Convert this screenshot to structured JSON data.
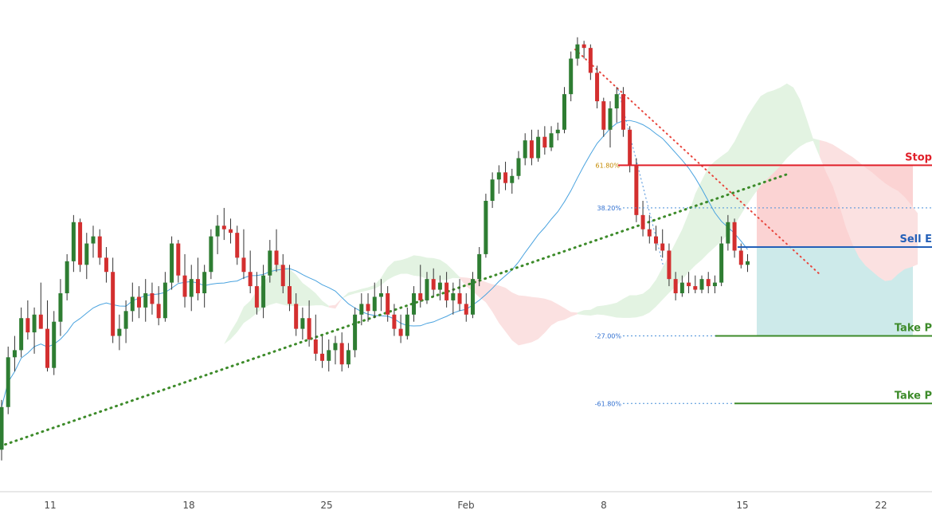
{
  "chart_data": {
    "type": "candlestick",
    "title": "",
    "xlabel": "",
    "ylabel": "",
    "x_ticks": [
      "11",
      "18",
      "25",
      "Feb",
      "8",
      "15",
      "22"
    ],
    "price_range": [
      0,
      100
    ],
    "grid": false,
    "legend": "none",
    "candles": [
      {
        "o": 8,
        "h": 22,
        "l": 5,
        "c": 20
      },
      {
        "o": 20,
        "h": 37,
        "l": 18,
        "c": 34
      },
      {
        "o": 34,
        "h": 40,
        "l": 30,
        "c": 36
      },
      {
        "o": 36,
        "h": 48,
        "l": 34,
        "c": 45
      },
      {
        "o": 45,
        "h": 50,
        "l": 39,
        "c": 41
      },
      {
        "o": 41,
        "h": 48,
        "l": 35,
        "c": 46
      },
      {
        "o": 46,
        "h": 55,
        "l": 42,
        "c": 42
      },
      {
        "o": 42,
        "h": 50,
        "l": 30,
        "c": 31
      },
      {
        "o": 31,
        "h": 47,
        "l": 29,
        "c": 44
      },
      {
        "o": 44,
        "h": 56,
        "l": 40,
        "c": 52
      },
      {
        "o": 52,
        "h": 63,
        "l": 50,
        "c": 61
      },
      {
        "o": 61,
        "h": 74,
        "l": 58,
        "c": 72
      },
      {
        "o": 72,
        "h": 73,
        "l": 58,
        "c": 60
      },
      {
        "o": 60,
        "h": 69,
        "l": 56,
        "c": 66
      },
      {
        "o": 66,
        "h": 71,
        "l": 62,
        "c": 68
      },
      {
        "o": 68,
        "h": 70,
        "l": 60,
        "c": 62
      },
      {
        "o": 62,
        "h": 65,
        "l": 55,
        "c": 58
      },
      {
        "o": 58,
        "h": 62,
        "l": 38,
        "c": 40
      },
      {
        "o": 40,
        "h": 46,
        "l": 36,
        "c": 42
      },
      {
        "o": 42,
        "h": 50,
        "l": 38,
        "c": 47
      },
      {
        "o": 47,
        "h": 55,
        "l": 44,
        "c": 51
      },
      {
        "o": 51,
        "h": 54,
        "l": 45,
        "c": 48
      },
      {
        "o": 48,
        "h": 56,
        "l": 44,
        "c": 52
      },
      {
        "o": 52,
        "h": 55,
        "l": 46,
        "c": 49
      },
      {
        "o": 49,
        "h": 54,
        "l": 43,
        "c": 45
      },
      {
        "o": 45,
        "h": 58,
        "l": 44,
        "c": 55
      },
      {
        "o": 55,
        "h": 68,
        "l": 53,
        "c": 66
      },
      {
        "o": 66,
        "h": 67,
        "l": 55,
        "c": 57
      },
      {
        "o": 57,
        "h": 63,
        "l": 48,
        "c": 51
      },
      {
        "o": 51,
        "h": 60,
        "l": 47,
        "c": 56
      },
      {
        "o": 56,
        "h": 62,
        "l": 50,
        "c": 52
      },
      {
        "o": 52,
        "h": 60,
        "l": 48,
        "c": 58
      },
      {
        "o": 58,
        "h": 70,
        "l": 56,
        "c": 68
      },
      {
        "o": 68,
        "h": 74,
        "l": 63,
        "c": 71
      },
      {
        "o": 71,
        "h": 76,
        "l": 67,
        "c": 70
      },
      {
        "o": 70,
        "h": 73,
        "l": 66,
        "c": 69
      },
      {
        "o": 69,
        "h": 71,
        "l": 60,
        "c": 62
      },
      {
        "o": 62,
        "h": 70,
        "l": 56,
        "c": 58
      },
      {
        "o": 58,
        "h": 64,
        "l": 52,
        "c": 54
      },
      {
        "o": 54,
        "h": 58,
        "l": 46,
        "c": 48
      },
      {
        "o": 48,
        "h": 60,
        "l": 45,
        "c": 57
      },
      {
        "o": 57,
        "h": 67,
        "l": 55,
        "c": 64
      },
      {
        "o": 64,
        "h": 70,
        "l": 58,
        "c": 60
      },
      {
        "o": 60,
        "h": 63,
        "l": 52,
        "c": 54
      },
      {
        "o": 54,
        "h": 60,
        "l": 47,
        "c": 49
      },
      {
        "o": 49,
        "h": 52,
        "l": 40,
        "c": 42
      },
      {
        "o": 42,
        "h": 48,
        "l": 39,
        "c": 45
      },
      {
        "o": 45,
        "h": 50,
        "l": 37,
        "c": 39
      },
      {
        "o": 39,
        "h": 46,
        "l": 33,
        "c": 35
      },
      {
        "o": 35,
        "h": 40,
        "l": 31,
        "c": 33
      },
      {
        "o": 33,
        "h": 39,
        "l": 30,
        "c": 36
      },
      {
        "o": 36,
        "h": 40,
        "l": 32,
        "c": 38
      },
      {
        "o": 38,
        "h": 41,
        "l": 30,
        "c": 32
      },
      {
        "o": 32,
        "h": 38,
        "l": 31,
        "c": 36
      },
      {
        "o": 36,
        "h": 48,
        "l": 34,
        "c": 46
      },
      {
        "o": 46,
        "h": 52,
        "l": 43,
        "c": 49
      },
      {
        "o": 49,
        "h": 52,
        "l": 44,
        "c": 47
      },
      {
        "o": 47,
        "h": 55,
        "l": 45,
        "c": 51
      },
      {
        "o": 51,
        "h": 56,
        "l": 47,
        "c": 52
      },
      {
        "o": 52,
        "h": 54,
        "l": 44,
        "c": 46
      },
      {
        "o": 46,
        "h": 49,
        "l": 40,
        "c": 42
      },
      {
        "o": 42,
        "h": 46,
        "l": 38,
        "c": 40
      },
      {
        "o": 40,
        "h": 48,
        "l": 39,
        "c": 46
      },
      {
        "o": 46,
        "h": 54,
        "l": 44,
        "c": 52
      },
      {
        "o": 52,
        "h": 60,
        "l": 48,
        "c": 50
      },
      {
        "o": 50,
        "h": 58,
        "l": 49,
        "c": 56
      },
      {
        "o": 56,
        "h": 59,
        "l": 51,
        "c": 53
      },
      {
        "o": 53,
        "h": 57,
        "l": 50,
        "c": 55
      },
      {
        "o": 55,
        "h": 58,
        "l": 48,
        "c": 50
      },
      {
        "o": 50,
        "h": 55,
        "l": 46,
        "c": 52
      },
      {
        "o": 52,
        "h": 56,
        "l": 47,
        "c": 49
      },
      {
        "o": 49,
        "h": 52,
        "l": 44,
        "c": 46
      },
      {
        "o": 46,
        "h": 58,
        "l": 45,
        "c": 56
      },
      {
        "o": 56,
        "h": 65,
        "l": 54,
        "c": 63
      },
      {
        "o": 63,
        "h": 80,
        "l": 62,
        "c": 78
      },
      {
        "o": 78,
        "h": 86,
        "l": 76,
        "c": 84
      },
      {
        "o": 84,
        "h": 88,
        "l": 80,
        "c": 86
      },
      {
        "o": 86,
        "h": 89,
        "l": 81,
        "c": 83
      },
      {
        "o": 83,
        "h": 87,
        "l": 80,
        "c": 85
      },
      {
        "o": 85,
        "h": 92,
        "l": 84,
        "c": 90
      },
      {
        "o": 90,
        "h": 97,
        "l": 88,
        "c": 95
      },
      {
        "o": 95,
        "h": 98,
        "l": 88,
        "c": 90
      },
      {
        "o": 90,
        "h": 98,
        "l": 89,
        "c": 96
      },
      {
        "o": 96,
        "h": 99,
        "l": 91,
        "c": 93
      },
      {
        "o": 93,
        "h": 99,
        "l": 92,
        "c": 97
      },
      {
        "o": 97,
        "h": 100,
        "l": 95,
        "c": 98
      },
      {
        "o": 98,
        "h": 110,
        "l": 97,
        "c": 108
      },
      {
        "o": 108,
        "h": 120,
        "l": 106,
        "c": 118
      },
      {
        "o": 118,
        "h": 124,
        "l": 116,
        "c": 122
      },
      {
        "o": 122,
        "h": 123,
        "l": 118,
        "c": 121
      },
      {
        "o": 121,
        "h": 122,
        "l": 112,
        "c": 114
      },
      {
        "o": 114,
        "h": 116,
        "l": 104,
        "c": 106
      },
      {
        "o": 106,
        "h": 107,
        "l": 96,
        "c": 98
      },
      {
        "o": 98,
        "h": 106,
        "l": 93,
        "c": 104
      },
      {
        "o": 104,
        "h": 110,
        "l": 100,
        "c": 108
      },
      {
        "o": 108,
        "h": 110,
        "l": 96,
        "c": 98
      },
      {
        "o": 98,
        "h": 99,
        "l": 86,
        "c": 88
      },
      {
        "o": 88,
        "h": 90,
        "l": 72,
        "c": 74
      },
      {
        "o": 74,
        "h": 78,
        "l": 68,
        "c": 70
      },
      {
        "o": 70,
        "h": 74,
        "l": 66,
        "c": 68
      },
      {
        "o": 68,
        "h": 71,
        "l": 64,
        "c": 66
      },
      {
        "o": 66,
        "h": 70,
        "l": 62,
        "c": 64
      },
      {
        "o": 64,
        "h": 66,
        "l": 54,
        "c": 56
      },
      {
        "o": 56,
        "h": 58,
        "l": 50,
        "c": 52
      },
      {
        "o": 52,
        "h": 57,
        "l": 51,
        "c": 55
      },
      {
        "o": 55,
        "h": 58,
        "l": 52,
        "c": 54
      },
      {
        "o": 54,
        "h": 57,
        "l": 52,
        "c": 53
      },
      {
        "o": 53,
        "h": 57,
        "l": 52,
        "c": 56
      },
      {
        "o": 56,
        "h": 58,
        "l": 52,
        "c": 54
      },
      {
        "o": 54,
        "h": 57,
        "l": 52,
        "c": 55
      },
      {
        "o": 55,
        "h": 68,
        "l": 54,
        "c": 66
      },
      {
        "o": 66,
        "h": 74,
        "l": 64,
        "c": 72
      },
      {
        "o": 72,
        "h": 73,
        "l": 62,
        "c": 64
      },
      {
        "o": 64,
        "h": 66,
        "l": 59,
        "c": 60
      },
      {
        "o": 60,
        "h": 63,
        "l": 58,
        "c": 61
      }
    ],
    "fib_levels": [
      {
        "label": "61.80%",
        "value": 88
      },
      {
        "label": "38.20%",
        "value": 76
      },
      {
        "label": "-27.00%",
        "value": 40
      },
      {
        "label": "-61.80%",
        "value": 21
      }
    ],
    "orders": [
      {
        "label": "Stop",
        "value": 88
      },
      {
        "label": "Sell E",
        "value": 65
      },
      {
        "label": "Take P",
        "value": 40
      },
      {
        "label": "Take P",
        "value": 21
      }
    ]
  },
  "colors": {
    "bull": "#2e7d32",
    "bear": "#d32f2f",
    "ma": "#4aa3df",
    "stop": "#e0202a",
    "entry": "#2460b8",
    "target": "#3d8b2a",
    "fib": "#4a90d9",
    "fib_gold": "#c58a00",
    "cloud_green": "#e3f3e2",
    "cloud_red": "#fbe1e1",
    "risk_zone": "#fbd3d3",
    "reward_zone": "#cdeaea"
  }
}
